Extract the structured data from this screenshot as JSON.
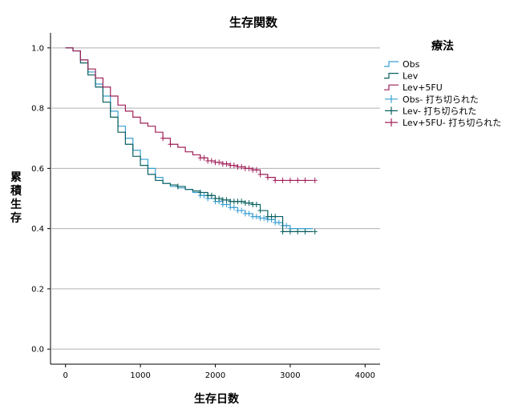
{
  "chart_data": {
    "type": "line",
    "title": "生存関数",
    "xlabel": "生存日数",
    "ylabel": "累積生存",
    "xlim": [
      -200,
      4200
    ],
    "ylim": [
      -0.05,
      1.05
    ],
    "xticks": [
      0,
      1000,
      2000,
      3000,
      4000
    ],
    "yticks": [
      0.0,
      0.2,
      0.4,
      0.6,
      0.8,
      1.0
    ],
    "ytick_labels": [
      "0.0",
      "0.2",
      "0.4",
      "0.6",
      "0.8",
      "1.0"
    ],
    "grid": "horizontal",
    "legend": {
      "title": "療法",
      "position": "right",
      "entries": [
        "Obs",
        "Lev",
        "Lev+5FU",
        "Obs- 打ち切られた",
        "Lev- 打ち切られた",
        "Lev+5FU- 打ち切られた"
      ]
    },
    "series": [
      {
        "name": "Obs",
        "color": "#3a9fd2",
        "x": [
          0,
          100,
          200,
          300,
          400,
          500,
          600,
          700,
          800,
          900,
          1000,
          1100,
          1200,
          1300,
          1400,
          1500,
          1600,
          1700,
          1800,
          1900,
          2000,
          2100,
          2200,
          2300,
          2400,
          2500,
          2600,
          2700,
          2800,
          2900,
          3000,
          3100,
          3200,
          3300
        ],
        "y": [
          1.0,
          0.99,
          0.96,
          0.92,
          0.88,
          0.84,
          0.79,
          0.74,
          0.7,
          0.66,
          0.63,
          0.6,
          0.57,
          0.55,
          0.54,
          0.535,
          0.53,
          0.52,
          0.51,
          0.5,
          0.49,
          0.48,
          0.47,
          0.46,
          0.45,
          0.44,
          0.435,
          0.43,
          0.42,
          0.41,
          0.4,
          0.4,
          0.4,
          0.4
        ],
        "censored_x": [
          1800,
          1850,
          1900,
          2000,
          2050,
          2100,
          2150,
          2200,
          2250,
          2300,
          2350,
          2400,
          2450,
          2500,
          2550,
          2600,
          2650,
          2700,
          2750,
          2800,
          2850,
          2900,
          2950,
          3000
        ]
      },
      {
        "name": "Lev",
        "color": "#0a5f5f",
        "x": [
          0,
          100,
          200,
          300,
          400,
          500,
          600,
          700,
          800,
          900,
          1000,
          1100,
          1200,
          1300,
          1400,
          1500,
          1600,
          1700,
          1800,
          1900,
          2000,
          2100,
          2200,
          2300,
          2400,
          2500,
          2600,
          2700,
          2800,
          2900,
          3000,
          3100,
          3200,
          3300
        ],
        "y": [
          1.0,
          0.99,
          0.95,
          0.91,
          0.87,
          0.82,
          0.77,
          0.72,
          0.68,
          0.64,
          0.61,
          0.58,
          0.56,
          0.55,
          0.545,
          0.54,
          0.53,
          0.525,
          0.52,
          0.51,
          0.5,
          0.495,
          0.49,
          0.49,
          0.485,
          0.48,
          0.46,
          0.44,
          0.44,
          0.39,
          0.39,
          0.39,
          0.39,
          0.39
        ],
        "censored_x": [
          1500,
          1800,
          1900,
          1950,
          2000,
          2050,
          2100,
          2150,
          2200,
          2250,
          2300,
          2350,
          2400,
          2450,
          2500,
          2550,
          2600,
          2700,
          2750,
          2800,
          2900,
          3000,
          3100,
          3200,
          3330
        ]
      },
      {
        "name": "Lev+5FU",
        "color": "#a0205a",
        "x": [
          0,
          100,
          200,
          300,
          400,
          500,
          600,
          700,
          800,
          900,
          1000,
          1100,
          1200,
          1300,
          1400,
          1500,
          1600,
          1700,
          1800,
          1900,
          2000,
          2100,
          2200,
          2300,
          2400,
          2500,
          2600,
          2700,
          2800,
          2900,
          3000,
          3100,
          3200,
          3300
        ],
        "y": [
          1.0,
          0.99,
          0.96,
          0.93,
          0.9,
          0.87,
          0.84,
          0.81,
          0.79,
          0.77,
          0.75,
          0.74,
          0.72,
          0.7,
          0.68,
          0.67,
          0.655,
          0.645,
          0.635,
          0.625,
          0.62,
          0.615,
          0.61,
          0.605,
          0.6,
          0.595,
          0.58,
          0.57,
          0.56,
          0.56,
          0.56,
          0.56,
          0.56,
          0.56
        ],
        "censored_x": [
          1300,
          1400,
          1800,
          1850,
          1900,
          1950,
          2000,
          2050,
          2100,
          2150,
          2200,
          2250,
          2300,
          2350,
          2400,
          2450,
          2500,
          2550,
          2600,
          2700,
          2800,
          2900,
          3000,
          3100,
          3200,
          3330
        ]
      }
    ]
  }
}
